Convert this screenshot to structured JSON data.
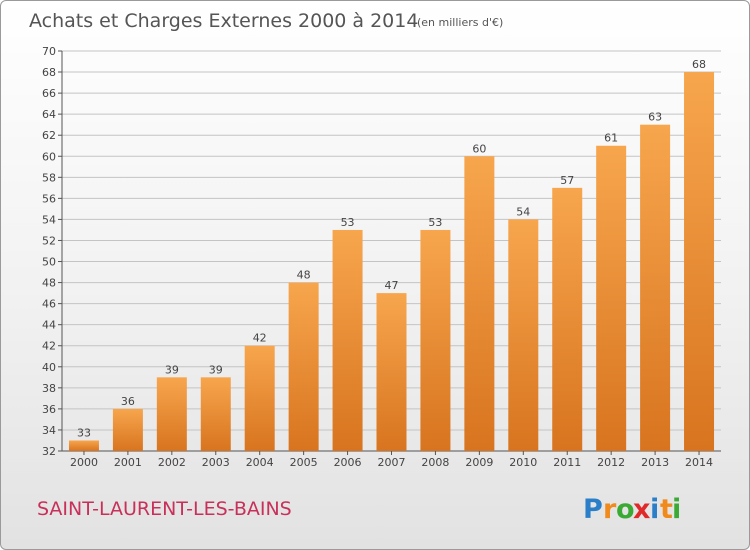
{
  "chart_data": {
    "type": "bar",
    "title": "Achats et Charges Externes 2000 à 2014",
    "subtitle": "(en milliers d'€)",
    "categories": [
      "2000",
      "2001",
      "2002",
      "2003",
      "2004",
      "2005",
      "2006",
      "2007",
      "2008",
      "2009",
      "2010",
      "2011",
      "2012",
      "2013",
      "2014"
    ],
    "values": [
      33,
      36,
      39,
      39,
      42,
      48,
      53,
      47,
      53,
      60,
      54,
      57,
      61,
      63,
      68
    ],
    "value_labels": [
      "33",
      "36",
      "39",
      "39",
      "42",
      "48",
      "53",
      "47",
      "53",
      "60",
      "54",
      "57",
      "61",
      "63",
      "68"
    ],
    "xlabel": "",
    "ylabel": "",
    "ylim": [
      32,
      70
    ],
    "yticks": [
      "32",
      "34",
      "36",
      "38",
      "40",
      "42",
      "44",
      "46",
      "48",
      "50",
      "52",
      "54",
      "56",
      "58",
      "60",
      "62",
      "64",
      "66",
      "68",
      "70"
    ],
    "grid": true,
    "bar_color_light": "#f7a64e",
    "bar_color_dark": "#d8741f"
  },
  "commune_name": "SAINT-LAURENT-LES-BAINS",
  "logo": {
    "letters": [
      "P",
      "r",
      "o",
      "x",
      "i",
      "t",
      "i"
    ],
    "colors": [
      "#2b7fc8",
      "#f08a1c",
      "#3aaa35",
      "#e02a2a",
      "#2b7fc8",
      "#f08a1c",
      "#3aaa35"
    ]
  }
}
